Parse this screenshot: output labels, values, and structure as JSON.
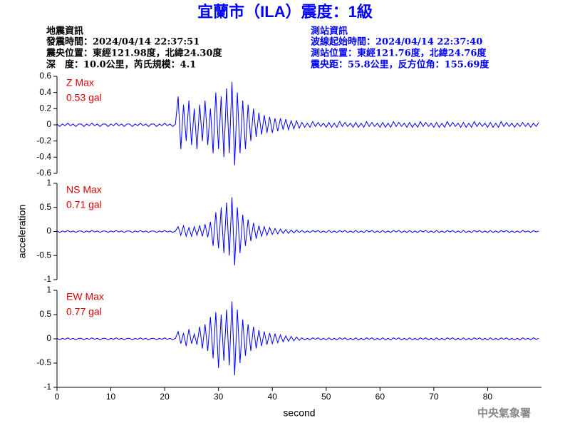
{
  "header": {
    "title": "宜蘭市（ILA）震度：1級",
    "left": [
      "地震資訊",
      "發震時間：2024/04/14 22:37:51",
      "震央位置：東經121.98度，北緯24.30度",
      "深　度：10.0公里，芮氏規模：4.1"
    ],
    "right": [
      "測站資訊",
      "波線起始時間：2024/04/14 22:37:40",
      "測站位置：東經121.76度，北緯24.76度",
      "震央距：55.8公里，反方位角：155.69度"
    ],
    "footer": "中央氣象署"
  },
  "chart_data": [
    {
      "type": "line",
      "annotations": [
        "Z Max",
        "0.53 gal"
      ],
      "color": "#0000ff",
      "ylim": [
        -0.6,
        0.6
      ],
      "yticks": [
        -0.6,
        -0.4,
        -0.2,
        0,
        0.2,
        0.4,
        0.6
      ],
      "xlim": [
        0,
        90
      ],
      "x": [
        0,
        0.5,
        1,
        1.5,
        2,
        2.5,
        3,
        3.5,
        4,
        4.5,
        5,
        5.5,
        6,
        6.5,
        7,
        7.5,
        8,
        8.5,
        9,
        9.5,
        10,
        10.5,
        11,
        11.5,
        12,
        12.5,
        13,
        13.5,
        14,
        14.5,
        15,
        15.5,
        16,
        16.5,
        17,
        17.5,
        18,
        18.5,
        19,
        19.5,
        20,
        20.5,
        21,
        21.5,
        22,
        22.5,
        23,
        23.5,
        24,
        24.5,
        25,
        25.5,
        26,
        26.5,
        27,
        27.5,
        28,
        28.5,
        29,
        29.5,
        30,
        30.5,
        31,
        31.5,
        32,
        32.5,
        33,
        33.5,
        34,
        34.5,
        35,
        35.5,
        36,
        36.5,
        37,
        37.5,
        38,
        38.5,
        39,
        39.5,
        40,
        40.5,
        41,
        41.5,
        42,
        42.5,
        43,
        43.5,
        44,
        44.5,
        45,
        45.5,
        46,
        46.5,
        47,
        47.5,
        48,
        48.5,
        49,
        49.5,
        50,
        50.5,
        51,
        51.5,
        52,
        52.5,
        53,
        53.5,
        54,
        54.5,
        55,
        55.5,
        56,
        56.5,
        57,
        57.5,
        58,
        58.5,
        59,
        59.5,
        60,
        60.5,
        61,
        61.5,
        62,
        62.5,
        63,
        63.5,
        64,
        64.5,
        65,
        65.5,
        66,
        66.5,
        67,
        67.5,
        68,
        68.5,
        69,
        69.5,
        70,
        70.5,
        71,
        71.5,
        72,
        72.5,
        73,
        73.5,
        74,
        74.5,
        75,
        75.5,
        76,
        76.5,
        77,
        77.5,
        78,
        78.5,
        79,
        79.5,
        80,
        80.5,
        81,
        81.5,
        82,
        82.5,
        83,
        83.5,
        84,
        84.5,
        85,
        85.5,
        86,
        86.5,
        87,
        87.5,
        88,
        88.5,
        89,
        89.5
      ],
      "values": [
        0.01,
        -0.02,
        0.01,
        -0.01,
        0.02,
        -0.01,
        0.01,
        -0.02,
        0.01,
        0.01,
        -0.02,
        0.01,
        -0.01,
        0.02,
        -0.01,
        0.01,
        -0.02,
        0.01,
        0.01,
        -0.02,
        0.01,
        -0.01,
        0.02,
        -0.01,
        0.01,
        -0.02,
        0.01,
        0.01,
        -0.02,
        0.01,
        -0.01,
        0.02,
        -0.01,
        0.01,
        -0.02,
        0.01,
        0.01,
        -0.02,
        0.01,
        -0.01,
        0.02,
        -0.01,
        0.01,
        -0.02,
        0.01,
        0.35,
        -0.3,
        0.25,
        -0.2,
        0.3,
        -0.25,
        0.2,
        -0.3,
        0.25,
        -0.2,
        0.3,
        -0.25,
        0.2,
        -0.35,
        0.4,
        -0.3,
        0.35,
        -0.4,
        0.45,
        -0.35,
        0.53,
        -0.5,
        0.4,
        -0.35,
        0.3,
        -0.3,
        0.25,
        -0.2,
        0.2,
        -0.15,
        0.15,
        -0.12,
        0.12,
        -0.1,
        0.1,
        -0.1,
        0.08,
        -0.08,
        0.08,
        -0.06,
        0.07,
        -0.06,
        0.05,
        -0.05,
        0.05,
        -0.04,
        0.03,
        -0.03,
        0.02,
        -0.03,
        0.04,
        -0.02,
        0.03,
        -0.02,
        0.02,
        -0.03,
        0.03,
        -0.03,
        0.02,
        -0.03,
        0.04,
        -0.02,
        0.03,
        -0.02,
        0.02,
        -0.03,
        0.03,
        -0.03,
        0.02,
        -0.03,
        0.04,
        -0.02,
        0.03,
        -0.02,
        0.02,
        -0.03,
        0.03,
        -0.03,
        0.02,
        -0.03,
        0.04,
        -0.02,
        0.03,
        -0.02,
        0.02,
        -0.03,
        0.03,
        -0.03,
        0.02,
        -0.03,
        0.04,
        -0.02,
        0.03,
        -0.02,
        0.02,
        -0.03,
        0.03,
        -0.03,
        0.02,
        -0.03,
        0.04,
        -0.02,
        0.03,
        -0.02,
        0.02,
        -0.03,
        0.03,
        -0.03,
        0.02,
        -0.03,
        0.04,
        -0.02,
        0.03,
        -0.02,
        0.02,
        -0.03,
        0.03,
        -0.03,
        0.02,
        -0.03,
        0.04,
        -0.02,
        0.03,
        -0.02,
        0.02,
        -0.03,
        0.02,
        -0.02,
        0.03,
        -0.02,
        0.02,
        -0.03,
        0.02,
        -0.02,
        0.03
      ]
    },
    {
      "type": "line",
      "annotations": [
        "NS Max",
        "0.71 gal"
      ],
      "color": "#0000ff",
      "ylabel": "acceleration",
      "ylim": [
        -1,
        1
      ],
      "yticks": [
        -1,
        -0.5,
        0,
        0.5,
        1
      ],
      "xlim": [
        0,
        90
      ],
      "x": [
        0,
        0.5,
        1,
        1.5,
        2,
        2.5,
        3,
        3.5,
        4,
        4.5,
        5,
        5.5,
        6,
        6.5,
        7,
        7.5,
        8,
        8.5,
        9,
        9.5,
        10,
        10.5,
        11,
        11.5,
        12,
        12.5,
        13,
        13.5,
        14,
        14.5,
        15,
        15.5,
        16,
        16.5,
        17,
        17.5,
        18,
        18.5,
        19,
        19.5,
        20,
        20.5,
        21,
        21.5,
        22,
        22.5,
        23,
        23.5,
        24,
        24.5,
        25,
        25.5,
        26,
        26.5,
        27,
        27.5,
        28,
        28.5,
        29,
        29.5,
        30,
        30.5,
        31,
        31.5,
        32,
        32.5,
        33,
        33.5,
        34,
        34.5,
        35,
        35.5,
        36,
        36.5,
        37,
        37.5,
        38,
        38.5,
        39,
        39.5,
        40,
        40.5,
        41,
        41.5,
        42,
        42.5,
        43,
        43.5,
        44,
        44.5,
        45,
        45.5,
        46,
        46.5,
        47,
        47.5,
        48,
        48.5,
        49,
        49.5,
        50,
        50.5,
        51,
        51.5,
        52,
        52.5,
        53,
        53.5,
        54,
        54.5,
        55,
        55.5,
        56,
        56.5,
        57,
        57.5,
        58,
        58.5,
        59,
        59.5,
        60,
        60.5,
        61,
        61.5,
        62,
        62.5,
        63,
        63.5,
        64,
        64.5,
        65,
        65.5,
        66,
        66.5,
        67,
        67.5,
        68,
        68.5,
        69,
        69.5,
        70,
        70.5,
        71,
        71.5,
        72,
        72.5,
        73,
        73.5,
        74,
        74.5,
        75,
        75.5,
        76,
        76.5,
        77,
        77.5,
        78,
        78.5,
        79,
        79.5,
        80,
        80.5,
        81,
        81.5,
        82,
        82.5,
        83,
        83.5,
        84,
        84.5,
        85,
        85.5,
        86,
        86.5,
        87,
        87.5,
        88,
        88.5,
        89,
        89.5
      ],
      "values": [
        0.01,
        -0.02,
        0.01,
        -0.01,
        0.02,
        -0.01,
        0.01,
        -0.02,
        0.01,
        0.01,
        -0.02,
        0.01,
        -0.01,
        0.02,
        -0.01,
        0.01,
        -0.02,
        0.01,
        0.01,
        -0.02,
        0.01,
        -0.01,
        0.02,
        -0.01,
        0.01,
        -0.02,
        0.01,
        0.01,
        -0.02,
        0.01,
        -0.01,
        0.02,
        -0.01,
        0.01,
        -0.02,
        0.01,
        0.01,
        -0.02,
        0.01,
        -0.01,
        0.02,
        -0.01,
        0.01,
        -0.02,
        0.01,
        0.1,
        -0.08,
        0.12,
        -0.1,
        0.08,
        -0.1,
        0.1,
        -0.08,
        0.12,
        -0.1,
        0.15,
        -0.12,
        0.2,
        -0.3,
        0.4,
        -0.35,
        0.5,
        -0.45,
        0.6,
        -0.5,
        0.71,
        -0.7,
        0.5,
        -0.45,
        0.35,
        -0.3,
        0.25,
        -0.2,
        0.18,
        -0.15,
        0.12,
        -0.1,
        0.1,
        -0.08,
        0.08,
        -0.06,
        0.06,
        -0.05,
        0.05,
        -0.04,
        0.04,
        -0.04,
        0.03,
        -0.03,
        0.03,
        -0.02,
        0.02,
        -0.02,
        0.01,
        -0.02,
        0.02,
        -0.01,
        0.02,
        -0.02,
        0.01,
        -0.02,
        0.02,
        -0.02,
        0.01,
        -0.02,
        0.02,
        -0.01,
        0.02,
        -0.02,
        0.01,
        -0.02,
        0.02,
        -0.02,
        0.01,
        -0.02,
        0.02,
        -0.01,
        0.02,
        -0.02,
        0.01,
        -0.02,
        0.02,
        -0.02,
        0.01,
        -0.02,
        0.02,
        -0.01,
        0.02,
        -0.02,
        0.01,
        -0.02,
        0.02,
        -0.02,
        0.01,
        -0.02,
        0.02,
        -0.01,
        0.02,
        -0.02,
        0.01,
        -0.02,
        0.02,
        -0.02,
        0.01,
        -0.02,
        0.02,
        -0.01,
        0.02,
        -0.02,
        0.01,
        -0.02,
        0.02,
        -0.02,
        0.01,
        -0.02,
        0.02,
        -0.01,
        0.02,
        -0.02,
        0.01,
        -0.02,
        0.02,
        -0.02,
        0.01,
        -0.02,
        0.02,
        -0.01,
        0.02,
        -0.02,
        0.01,
        -0.02,
        0.01,
        -0.02,
        0.02,
        -0.01,
        0.01,
        -0.02,
        0.02,
        -0.01,
        0.01
      ]
    },
    {
      "type": "line",
      "annotations": [
        "EW Max",
        "0.77 gal"
      ],
      "color": "#0000ff",
      "xlabel": "second",
      "ylim": [
        -1,
        1
      ],
      "yticks": [
        -1,
        -0.5,
        0,
        0.5,
        1
      ],
      "xlim": [
        0,
        90
      ],
      "xticks": [
        0,
        10,
        20,
        30,
        40,
        50,
        60,
        70,
        80
      ],
      "x": [
        0,
        0.5,
        1,
        1.5,
        2,
        2.5,
        3,
        3.5,
        4,
        4.5,
        5,
        5.5,
        6,
        6.5,
        7,
        7.5,
        8,
        8.5,
        9,
        9.5,
        10,
        10.5,
        11,
        11.5,
        12,
        12.5,
        13,
        13.5,
        14,
        14.5,
        15,
        15.5,
        16,
        16.5,
        17,
        17.5,
        18,
        18.5,
        19,
        19.5,
        20,
        20.5,
        21,
        21.5,
        22,
        22.5,
        23,
        23.5,
        24,
        24.5,
        25,
        25.5,
        26,
        26.5,
        27,
        27.5,
        28,
        28.5,
        29,
        29.5,
        30,
        30.5,
        31,
        31.5,
        32,
        32.5,
        33,
        33.5,
        34,
        34.5,
        35,
        35.5,
        36,
        36.5,
        37,
        37.5,
        38,
        38.5,
        39,
        39.5,
        40,
        40.5,
        41,
        41.5,
        42,
        42.5,
        43,
        43.5,
        44,
        44.5,
        45,
        45.5,
        46,
        46.5,
        47,
        47.5,
        48,
        48.5,
        49,
        49.5,
        50,
        50.5,
        51,
        51.5,
        52,
        52.5,
        53,
        53.5,
        54,
        54.5,
        55,
        55.5,
        56,
        56.5,
        57,
        57.5,
        58,
        58.5,
        59,
        59.5,
        60,
        60.5,
        61,
        61.5,
        62,
        62.5,
        63,
        63.5,
        64,
        64.5,
        65,
        65.5,
        66,
        66.5,
        67,
        67.5,
        68,
        68.5,
        69,
        69.5,
        70,
        70.5,
        71,
        71.5,
        72,
        72.5,
        73,
        73.5,
        74,
        74.5,
        75,
        75.5,
        76,
        76.5,
        77,
        77.5,
        78,
        78.5,
        79,
        79.5,
        80,
        80.5,
        81,
        81.5,
        82,
        82.5,
        83,
        83.5,
        84,
        84.5,
        85,
        85.5,
        86,
        86.5,
        87,
        87.5,
        88,
        88.5,
        89,
        89.5
      ],
      "values": [
        0.01,
        -0.02,
        0.01,
        -0.01,
        0.02,
        -0.01,
        0.01,
        -0.02,
        0.01,
        0.01,
        -0.02,
        0.01,
        -0.01,
        0.02,
        -0.01,
        0.01,
        -0.02,
        0.01,
        0.01,
        -0.02,
        0.01,
        -0.01,
        0.02,
        -0.01,
        0.01,
        -0.02,
        0.01,
        0.01,
        -0.02,
        0.01,
        -0.01,
        0.02,
        -0.01,
        0.01,
        -0.02,
        0.01,
        0.01,
        -0.02,
        0.01,
        -0.01,
        0.02,
        -0.01,
        0.01,
        -0.02,
        0.01,
        0.15,
        -0.1,
        0.12,
        -0.15,
        0.2,
        -0.1,
        0.1,
        -0.12,
        0.25,
        -0.2,
        0.3,
        -0.25,
        0.45,
        -0.4,
        0.55,
        -0.6,
        0.5,
        -0.45,
        0.6,
        -0.55,
        0.77,
        -0.75,
        0.6,
        -0.5,
        0.4,
        -0.35,
        0.3,
        -0.25,
        0.25,
        -0.2,
        0.18,
        -0.15,
        0.15,
        -0.12,
        0.12,
        -0.1,
        0.1,
        -0.08,
        0.08,
        -0.06,
        0.06,
        -0.05,
        0.05,
        -0.04,
        0.04,
        -0.03,
        0.02,
        -0.02,
        0.01,
        -0.02,
        0.02,
        -0.01,
        0.02,
        -0.02,
        0.01,
        -0.02,
        0.02,
        -0.02,
        0.01,
        -0.02,
        0.02,
        -0.01,
        0.02,
        -0.02,
        0.01,
        -0.02,
        0.02,
        -0.02,
        0.01,
        -0.02,
        0.02,
        -0.01,
        0.02,
        -0.02,
        0.01,
        -0.02,
        0.02,
        -0.02,
        0.01,
        -0.02,
        0.02,
        -0.01,
        0.02,
        -0.02,
        0.01,
        -0.02,
        0.02,
        -0.02,
        0.01,
        -0.02,
        0.02,
        -0.01,
        0.02,
        -0.02,
        0.01,
        -0.02,
        0.02,
        -0.02,
        0.01,
        -0.02,
        0.02,
        -0.01,
        0.02,
        -0.02,
        0.01,
        -0.02,
        0.02,
        -0.02,
        0.01,
        -0.02,
        0.02,
        -0.01,
        0.02,
        -0.02,
        0.01,
        -0.02,
        0.02,
        -0.02,
        0.01,
        -0.02,
        0.02,
        -0.01,
        0.02,
        -0.02,
        0.01,
        -0.02,
        0.01,
        -0.02,
        0.02,
        -0.01,
        0.01,
        -0.02,
        0.02,
        -0.01,
        0.01
      ]
    }
  ]
}
